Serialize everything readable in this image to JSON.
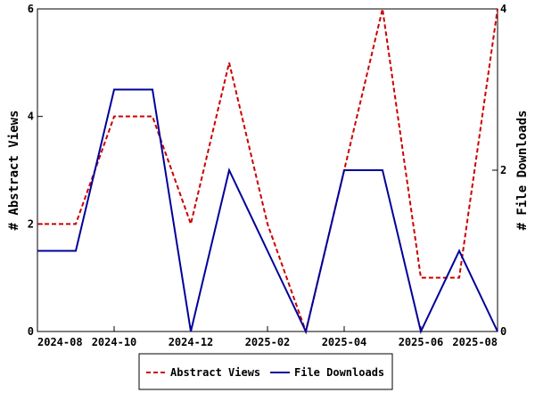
{
  "chart_data": {
    "type": "line",
    "title": "",
    "x": [
      "2024-08",
      "2024-09",
      "2024-10",
      "2024-11",
      "2024-12",
      "2025-01",
      "2025-02",
      "2025-03",
      "2025-04",
      "2025-05",
      "2025-06",
      "2025-07",
      "2025-08"
    ],
    "xlim": [
      "2024-08",
      "2025-08"
    ],
    "x_ticks": [
      "2024-08",
      "2024-10",
      "2024-12",
      "2025-02",
      "2025-04",
      "2025-06",
      "2025-08"
    ],
    "ylabel": "# Abstract Views",
    "ylim": [
      0,
      6
    ],
    "y_ticks": [
      "0",
      "2",
      "4",
      "6"
    ],
    "y2label": "# File Downloads",
    "y2lim": [
      0,
      4
    ],
    "y2_ticks": [
      "0",
      "2",
      "4"
    ],
    "series": [
      {
        "name": "Abstract Views",
        "axis": "left",
        "color": "#cc0000",
        "style": "dashed",
        "values": [
          2,
          2,
          4,
          4,
          2,
          5,
          2,
          0,
          3,
          6,
          1,
          1,
          6
        ]
      },
      {
        "name": "File Downloads",
        "axis": "right",
        "color": "#000099",
        "style": "solid",
        "values": [
          1,
          1,
          3,
          3,
          0,
          2,
          1,
          0,
          2,
          2,
          0,
          1,
          0
        ]
      }
    ],
    "grid": false,
    "legend_position": "bottom"
  }
}
